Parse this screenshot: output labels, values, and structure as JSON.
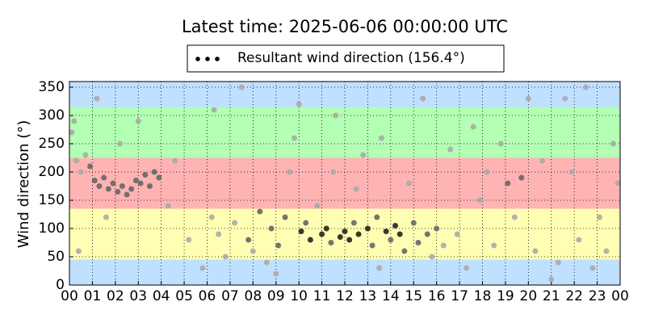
{
  "chart_data": {
    "type": "scatter",
    "title": "Latest time: 2025-06-06 00:00:00 UTC",
    "ylabel": "Wind direction (°)",
    "xlim": [
      0,
      24
    ],
    "ylim": [
      0,
      360
    ],
    "yticks": [
      0,
      50,
      100,
      150,
      200,
      250,
      300,
      350
    ],
    "xticks": [
      {
        "value": 0,
        "label": "00"
      },
      {
        "value": 1,
        "label": "01"
      },
      {
        "value": 2,
        "label": "02"
      },
      {
        "value": 3,
        "label": "03"
      },
      {
        "value": 4,
        "label": "04"
      },
      {
        "value": 5,
        "label": "05"
      },
      {
        "value": 6,
        "label": "06"
      },
      {
        "value": 7,
        "label": "07"
      },
      {
        "value": 8,
        "label": "08"
      },
      {
        "value": 9,
        "label": "09"
      },
      {
        "value": 10,
        "label": "10"
      },
      {
        "value": 11,
        "label": "11"
      },
      {
        "value": 12,
        "label": "12"
      },
      {
        "value": 13,
        "label": "13"
      },
      {
        "value": 14,
        "label": "14"
      },
      {
        "value": 15,
        "label": "15"
      },
      {
        "value": 16,
        "label": "16"
      },
      {
        "value": 17,
        "label": "17"
      },
      {
        "value": 18,
        "label": "18"
      },
      {
        "value": 19,
        "label": "19"
      },
      {
        "value": 20,
        "label": "20"
      },
      {
        "value": 21,
        "label": "21"
      },
      {
        "value": 22,
        "label": "22"
      },
      {
        "value": 23,
        "label": "23"
      },
      {
        "value": 24,
        "label": "00"
      }
    ],
    "grid": true,
    "bands": [
      {
        "from": 0,
        "to": 45,
        "color": "#bfe0ff"
      },
      {
        "from": 45,
        "to": 135,
        "color": "#ffffb3"
      },
      {
        "from": 135,
        "to": 225,
        "color": "#ffb3b3"
      },
      {
        "from": 225,
        "to": 315,
        "color": "#b3ffb3"
      },
      {
        "from": 315,
        "to": 360,
        "color": "#bfe0ff"
      }
    ],
    "series": [
      {
        "name": "Resultant wind direction (156.4°)",
        "color": "#000000",
        "x": [
          0.1,
          0.2,
          0.3,
          0.5,
          0.4,
          0.7,
          0.9,
          1.1,
          1.3,
          1.5,
          1.7,
          1.9,
          2.1,
          2.3,
          2.5,
          2.7,
          2.9,
          3.1,
          3.3,
          3.5,
          3.7,
          3.9,
          1.2,
          1.6,
          2.2,
          3.0,
          4.3,
          4.6,
          5.2,
          5.8,
          6.2,
          6.5,
          6.8,
          6.3,
          7.2,
          7.5,
          7.8,
          8.0,
          8.3,
          8.6,
          8.8,
          9.1,
          9.4,
          9.6,
          9.8,
          10.1,
          10.3,
          10.5,
          10.8,
          11.0,
          11.2,
          11.4,
          11.6,
          11.8,
          12.0,
          12.2,
          12.4,
          12.6,
          12.8,
          13.0,
          13.2,
          13.4,
          13.6,
          13.8,
          14.0,
          14.2,
          14.4,
          14.6,
          14.8,
          15.0,
          15.2,
          15.4,
          15.6,
          15.8,
          16.0,
          16.3,
          16.6,
          16.9,
          11.5,
          12.5,
          13.5,
          10.0,
          9.0,
          17.3,
          17.6,
          17.9,
          18.2,
          18.5,
          18.8,
          19.1,
          19.4,
          19.7,
          20.0,
          20.3,
          20.6,
          21.0,
          21.3,
          21.6,
          21.9,
          22.2,
          22.5,
          22.8,
          23.1,
          23.4,
          23.7,
          23.9
        ],
        "values": [
          270,
          290,
          220,
          200,
          60,
          230,
          210,
          185,
          175,
          190,
          170,
          180,
          165,
          175,
          160,
          170,
          185,
          180,
          195,
          175,
          200,
          190,
          330,
          120,
          250,
          290,
          140,
          220,
          80,
          30,
          120,
          90,
          50,
          310,
          110,
          350,
          80,
          60,
          130,
          40,
          100,
          70,
          120,
          200,
          260,
          95,
          110,
          80,
          140,
          90,
          100,
          75,
          300,
          85,
          95,
          80,
          110,
          90,
          230,
          100,
          70,
          120,
          260,
          95,
          80,
          105,
          90,
          60,
          180,
          110,
          75,
          330,
          90,
          50,
          100,
          70,
          240,
          90,
          200,
          170,
          30,
          320,
          20,
          30,
          280,
          150,
          200,
          70,
          250,
          180,
          120,
          190,
          330,
          60,
          220,
          10,
          40,
          330,
          200,
          80,
          350,
          30,
          120,
          60,
          250,
          180
        ],
        "point_colors": [
          "#aaa",
          "#aaa",
          "#aaa",
          "#aaa",
          "#aaa",
          "#aaa",
          "#666",
          "#666",
          "#666",
          "#666",
          "#666",
          "#666",
          "#666",
          "#666",
          "#666",
          "#666",
          "#666",
          "#666",
          "#666",
          "#666",
          "#666",
          "#666",
          "#aaa",
          "#aaa",
          "#aaa",
          "#aaa",
          "#aaa",
          "#aaa",
          "#aaa",
          "#aaa",
          "#aaa",
          "#aaa",
          "#aaa",
          "#aaa",
          "#aaa",
          "#aaa",
          "#666",
          "#aaa",
          "#666",
          "#aaa",
          "#666",
          "#666",
          "#666",
          "#aaa",
          "#aaa",
          "#222",
          "#666",
          "#222",
          "#aaa",
          "#222",
          "#222",
          "#666",
          "#aaa",
          "#222",
          "#222",
          "#222",
          "#666",
          "#222",
          "#aaa",
          "#222",
          "#666",
          "#666",
          "#aaa",
          "#222",
          "#666",
          "#222",
          "#222",
          "#666",
          "#aaa",
          "#666",
          "#666",
          "#aaa",
          "#666",
          "#aaa",
          "#666",
          "#aaa",
          "#aaa",
          "#aaa",
          "#aaa",
          "#aaa",
          "#aaa",
          "#aaa",
          "#aaa",
          "#aaa",
          "#aaa",
          "#aaa",
          "#aaa",
          "#aaa",
          "#aaa",
          "#666",
          "#aaa",
          "#666",
          "#aaa",
          "#aaa",
          "#aaa",
          "#aaa",
          "#aaa",
          "#aaa",
          "#aaa",
          "#aaa",
          "#aaa",
          "#aaa",
          "#aaa",
          "#aaa",
          "#aaa",
          "#aaa"
        ]
      }
    ]
  }
}
